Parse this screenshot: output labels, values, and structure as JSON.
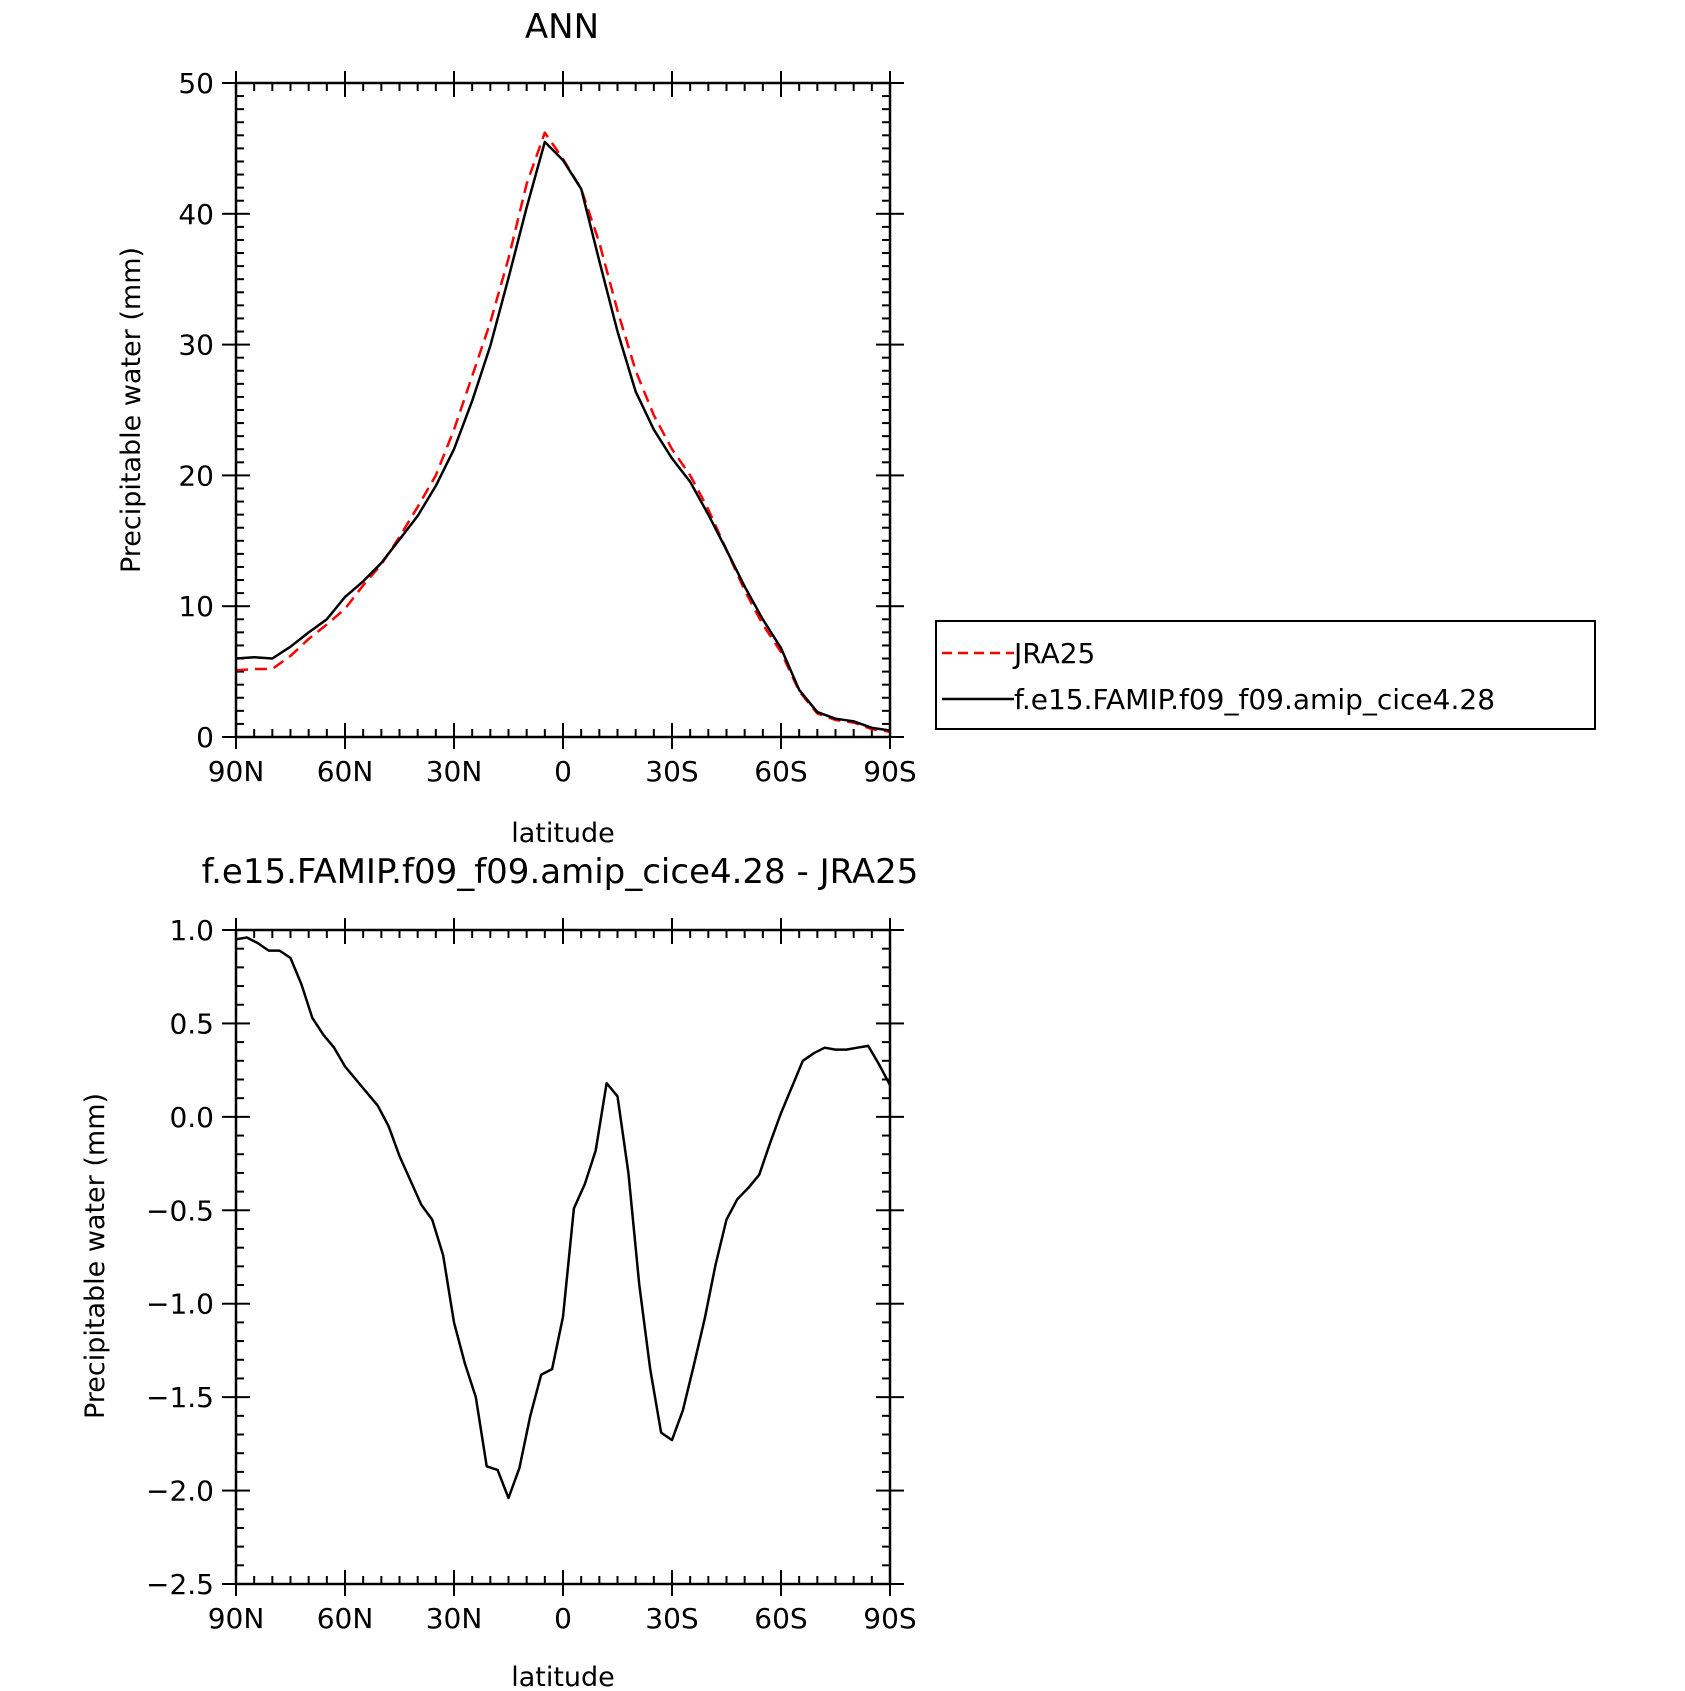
{
  "chart_data": [
    {
      "type": "line",
      "title": "ANN",
      "xlabel": "latitude",
      "ylabel": "Precipitable water (mm)",
      "xlim": [
        90,
        -90
      ],
      "ylim": [
        0,
        50
      ],
      "x_ticks": [
        {
          "value": 90,
          "label": "90N"
        },
        {
          "value": 60,
          "label": "60N"
        },
        {
          "value": 30,
          "label": "30N"
        },
        {
          "value": 0,
          "label": "0"
        },
        {
          "value": -30,
          "label": "30S"
        },
        {
          "value": -60,
          "label": "60S"
        },
        {
          "value": -90,
          "label": "90S"
        }
      ],
      "y_ticks": [
        {
          "value": 0,
          "label": "0"
        },
        {
          "value": 10,
          "label": "10"
        },
        {
          "value": 20,
          "label": "20"
        },
        {
          "value": 30,
          "label": "30"
        },
        {
          "value": 40,
          "label": "40"
        },
        {
          "value": 50,
          "label": "50"
        }
      ],
      "legend": {
        "placement": "right"
      },
      "series": [
        {
          "name": "JRA25",
          "color": "#ff0000",
          "dash": "dashed",
          "x": [
            90,
            85,
            80,
            75,
            70,
            65,
            60,
            55,
            50,
            45,
            40,
            35,
            30,
            25,
            20,
            15,
            10,
            5,
            0,
            -5,
            -10,
            -15,
            -20,
            -25,
            -30,
            -35,
            -40,
            -45,
            -50,
            -55,
            -60,
            -65,
            -70,
            -75,
            -80,
            -85,
            -90
          ],
          "values": [
            5.1,
            5.2,
            5.2,
            6.2,
            7.5,
            8.6,
            9.8,
            11.6,
            13.2,
            15.3,
            17.6,
            20.0,
            23.5,
            27.6,
            31.7,
            36.6,
            42.3,
            46.2,
            44.2,
            41.9,
            37.8,
            32.6,
            28.0,
            24.6,
            22.0,
            20.0,
            17.4,
            14.3,
            11.2,
            8.6,
            6.5,
            3.5,
            1.8,
            1.3,
            1.1,
            0.6,
            0.4
          ]
        },
        {
          "name": "f.e15.FAMIP.f09_f09.amip_cice4.28",
          "color": "#000000",
          "dash": "solid",
          "x": [
            90,
            85,
            80,
            75,
            70,
            65,
            60,
            55,
            50,
            45,
            40,
            35,
            30,
            25,
            20,
            15,
            10,
            5,
            0,
            -5,
            -10,
            -15,
            -20,
            -25,
            -30,
            -35,
            -40,
            -45,
            -50,
            -55,
            -60,
            -65,
            -70,
            -75,
            -80,
            -85,
            -90
          ],
          "values": [
            6.0,
            6.1,
            6.0,
            6.9,
            8.0,
            9.0,
            10.7,
            11.9,
            13.3,
            15.1,
            16.9,
            19.2,
            22.0,
            25.7,
            29.9,
            35.1,
            40.5,
            45.5,
            44.1,
            41.9,
            36.4,
            31.0,
            26.4,
            23.5,
            21.3,
            19.5,
            17.0,
            14.3,
            11.5,
            9.0,
            6.8,
            3.6,
            1.9,
            1.4,
            1.2,
            0.7,
            0.5
          ]
        }
      ]
    },
    {
      "type": "line",
      "title": "f.e15.FAMIP.f09_f09.amip_cice4.28 - JRA25",
      "xlabel": "latitude",
      "ylabel": "Precipitable water (mm)",
      "xlim": [
        90,
        -90
      ],
      "ylim": [
        -2.5,
        1.0
      ],
      "x_ticks": [
        {
          "value": 90,
          "label": "90N"
        },
        {
          "value": 60,
          "label": "60N"
        },
        {
          "value": 30,
          "label": "30N"
        },
        {
          "value": 0,
          "label": "0"
        },
        {
          "value": -30,
          "label": "30S"
        },
        {
          "value": -60,
          "label": "60S"
        },
        {
          "value": -90,
          "label": "90S"
        }
      ],
      "y_ticks": [
        {
          "value": -2.5,
          "label": "−2.5"
        },
        {
          "value": -2.0,
          "label": "−2.0"
        },
        {
          "value": -1.5,
          "label": "−1.5"
        },
        {
          "value": -1.0,
          "label": "−1.0"
        },
        {
          "value": -0.5,
          "label": "−0.5"
        },
        {
          "value": 0.0,
          "label": "0.0"
        },
        {
          "value": 0.5,
          "label": "0.5"
        },
        {
          "value": 1.0,
          "label": "1.0"
        }
      ],
      "series": [
        {
          "color": "#000000",
          "dash": "solid",
          "x": [
            90,
            87,
            84,
            81,
            78,
            75,
            72,
            69,
            66,
            63,
            60,
            57,
            54,
            51,
            48,
            45,
            42,
            39,
            36,
            33,
            30,
            27,
            24,
            21,
            18,
            15,
            12,
            9,
            6,
            3,
            0,
            -3,
            -6,
            -9,
            -12,
            -15,
            -18,
            -21,
            -24,
            -27,
            -30,
            -33,
            -36,
            -39,
            -42,
            -45,
            -48,
            -51,
            -54,
            -57,
            -60,
            -63,
            -66,
            -69,
            -72,
            -75,
            -78,
            -81,
            -84,
            -87,
            -90
          ],
          "values": [
            0.95,
            0.96,
            0.93,
            0.89,
            0.89,
            0.85,
            0.71,
            0.53,
            0.44,
            0.37,
            0.27,
            0.2,
            0.13,
            0.06,
            -0.05,
            -0.21,
            -0.34,
            -0.47,
            -0.55,
            -0.74,
            -1.1,
            -1.32,
            -1.5,
            -1.87,
            -1.89,
            -2.04,
            -1.88,
            -1.6,
            -1.38,
            -1.35,
            -1.07,
            -0.49,
            -0.36,
            -0.18,
            0.18,
            0.11,
            -0.3,
            -0.9,
            -1.35,
            -1.69,
            -1.73,
            -1.57,
            -1.33,
            -1.08,
            -0.79,
            -0.55,
            -0.44,
            -0.38,
            -0.31,
            -0.14,
            0.02,
            0.16,
            0.3,
            0.34,
            0.37,
            0.36,
            0.36,
            0.37,
            0.38,
            0.28,
            0.17
          ]
        }
      ]
    }
  ]
}
